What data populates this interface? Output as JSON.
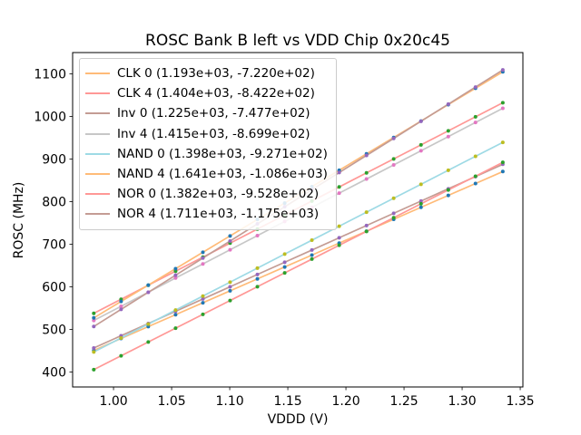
{
  "chart_data": {
    "type": "line+scatter",
    "title": "ROSC Bank B left vs VDD Chip 0x20c45",
    "xlabel": "VDDD (V)",
    "ylabel": "ROSC (MHz)",
    "xlim": [
      0.9648,
      1.3523
    ],
    "ylim": [
      365,
      1150
    ],
    "xticks": [
      1.0,
      1.05,
      1.1,
      1.15,
      1.2,
      1.25,
      1.3,
      1.35
    ],
    "xtick_labels": [
      "1.00",
      "1.05",
      "1.10",
      "1.15",
      "1.20",
      "1.25",
      "1.30",
      "1.35"
    ],
    "yticks": [
      400,
      500,
      600,
      700,
      800,
      900,
      1000,
      1100
    ],
    "ytick_labels": [
      "400",
      "500",
      "600",
      "700",
      "800",
      "900",
      "1000",
      "1100"
    ],
    "grid": false,
    "legend_position": "upper left",
    "x": [
      0.983,
      1.0065,
      1.0299,
      1.0534,
      1.0769,
      1.1003,
      1.1238,
      1.1473,
      1.1707,
      1.1942,
      1.2177,
      1.2411,
      1.2646,
      1.2881,
      1.3115,
      1.335
    ],
    "series": [
      {
        "name": "CLK 0",
        "legend_label": "CLK 0 (1.193e+03, -7.220e+02)",
        "fit_slope": 1193.0,
        "fit_intercept": -722.0,
        "line_color": "#ffbb78",
        "marker_color": "#1f77b4",
        "y": [
          450.7,
          478.8,
          506.7,
          534.7,
          562.7,
          590.7,
          618.7,
          646.7,
          674.6,
          702.7,
          730.7,
          758.6,
          786.7,
          814.7,
          842.6,
          870.7
        ]
      },
      {
        "name": "CLK 4",
        "legend_label": "CLK 4 (1.404e+03, -8.422e+02)",
        "fit_slope": 1404.0,
        "fit_intercept": -842.2,
        "line_color": "#ff9896",
        "marker_color": "#2ca02c",
        "y": [
          537.9,
          570.9,
          603.8,
          636.8,
          669.8,
          702.6,
          735.6,
          768.6,
          801.5,
          834.5,
          867.5,
          900.3,
          933.3,
          966.3,
          999.1,
          1032.1
        ]
      },
      {
        "name": "Inv 0",
        "legend_label": "Inv 0 (1.225e+03, -7.477e+02)",
        "fit_slope": 1225.0,
        "fit_intercept": -747.7,
        "line_color": "#c49c94",
        "marker_color": "#9467bd",
        "y": [
          456.5,
          485.3,
          513.9,
          542.7,
          571.5,
          600.2,
          629.0,
          657.7,
          686.4,
          715.2,
          744.0,
          772.7,
          801.4,
          830.2,
          858.9,
          887.7
        ]
      },
      {
        "name": "Inv 4",
        "legend_label": "Inv 4 (1.415e+03, -8.699e+02)",
        "fit_slope": 1415.0,
        "fit_intercept": -869.9,
        "line_color": "#c7c7c7",
        "marker_color": "#e377c2",
        "y": [
          521.0,
          554.3,
          587.4,
          620.7,
          653.9,
          687.0,
          720.3,
          753.5,
          786.6,
          819.9,
          853.1,
          886.3,
          919.5,
          952.8,
          985.9,
          1019.1
        ]
      },
      {
        "name": "NAND 0",
        "legend_label": "NAND 0 (1.398e+03, -9.271e+02)",
        "fit_slope": 1398.0,
        "fit_intercept": -927.1,
        "line_color": "#9edae5",
        "marker_color": "#bcbd22",
        "y": [
          447.1,
          480.0,
          512.7,
          545.6,
          578.4,
          611.1,
          644.0,
          676.8,
          709.5,
          742.4,
          775.2,
          808.0,
          840.8,
          873.7,
          906.4,
          939.2
        ]
      },
      {
        "name": "NAND 4",
        "legend_label": "NAND 4 (1.641e+03, -1.086e+03)",
        "fit_slope": 1641.0,
        "fit_intercept": -1086.0,
        "line_color": "#ffbb78",
        "marker_color": "#1f77b4",
        "y": [
          527.1,
          565.7,
          604.1,
          642.6,
          681.2,
          719.6,
          758.2,
          796.7,
          835.1,
          873.7,
          912.2,
          950.6,
          989.2,
          1027.8,
          1066.2,
          1104.7
        ]
      },
      {
        "name": "NOR 0",
        "legend_label": "NOR 0 (1.382e+03, -9.528e+02)",
        "fit_slope": 1382.0,
        "fit_intercept": -952.8,
        "line_color": "#ff9896",
        "marker_color": "#2ca02c",
        "y": [
          405.7,
          438.2,
          470.5,
          503.0,
          535.5,
          567.8,
          600.3,
          632.8,
          665.1,
          697.6,
          730.1,
          762.4,
          794.9,
          827.4,
          859.7,
          892.2
        ]
      },
      {
        "name": "NOR 4",
        "legend_label": "NOR 4 (1.711e+03, -1.175e+03)",
        "fit_slope": 1711.0,
        "fit_intercept": -1175.0,
        "line_color": "#c49c94",
        "marker_color": "#9467bd",
        "y": [
          506.9,
          547.1,
          587.2,
          627.4,
          667.6,
          707.6,
          747.8,
          788.0,
          828.1,
          868.3,
          908.5,
          948.5,
          988.7,
          1028.9,
          1069.0,
          1109.2
        ]
      }
    ]
  }
}
